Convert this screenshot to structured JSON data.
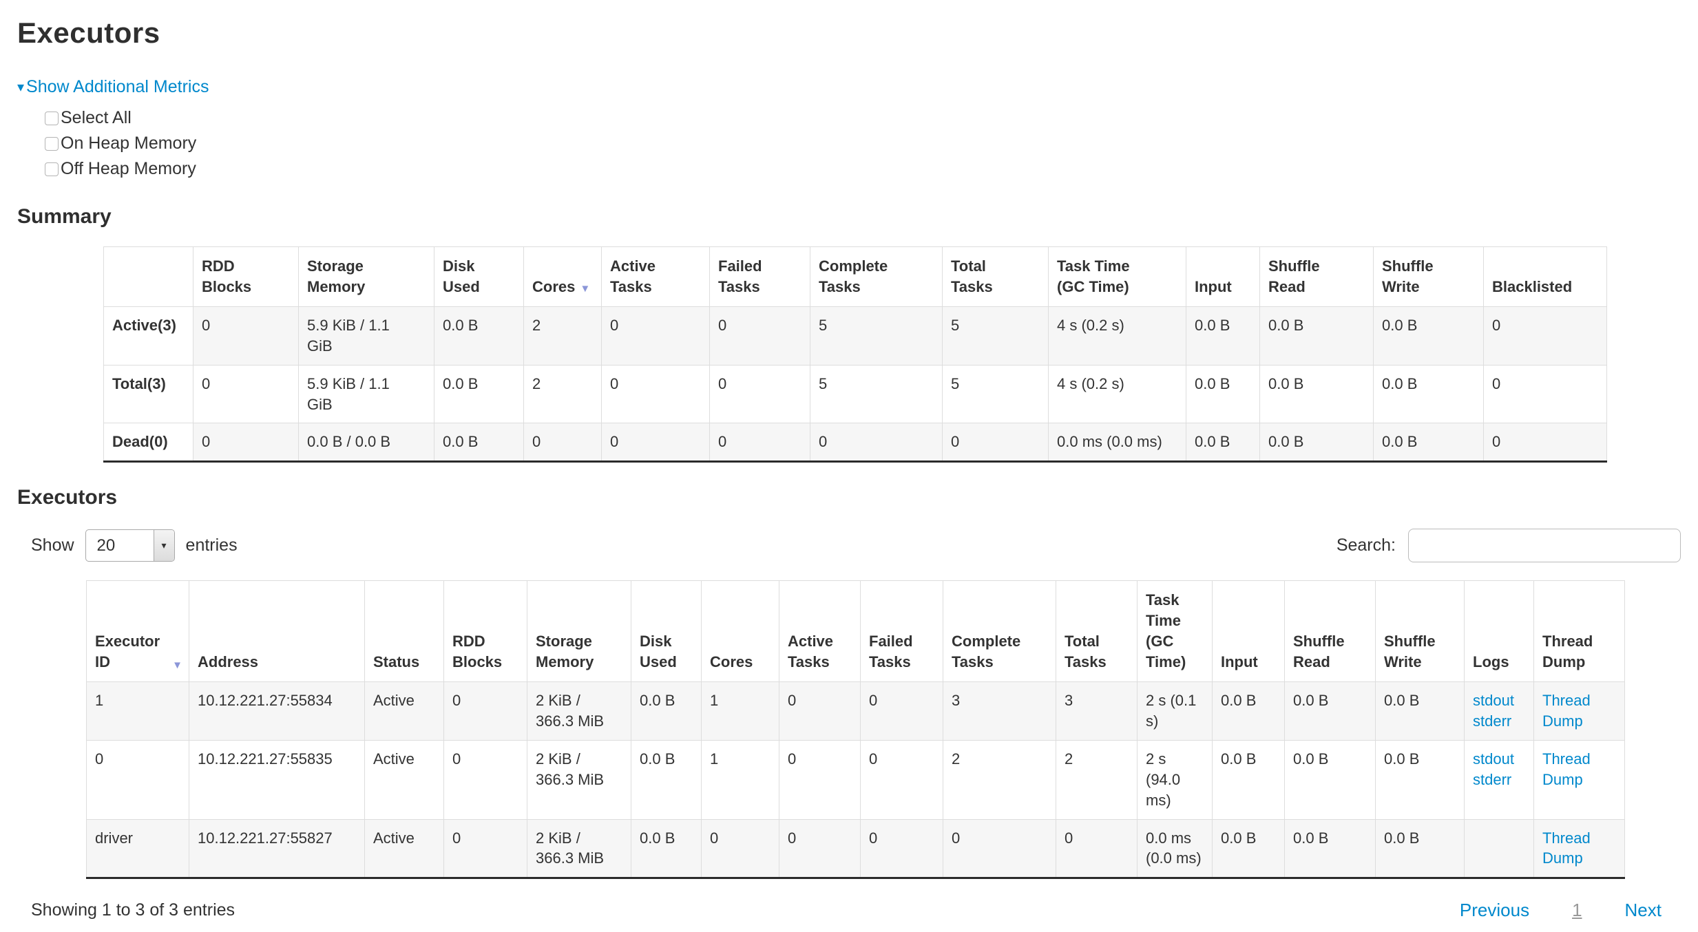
{
  "page": {
    "title": "Executors"
  },
  "icons": {
    "toggle_arrow": "▾",
    "sort_arrow": "▼",
    "select_arrow": "▾"
  },
  "colors": {
    "link": "#0088cc",
    "sort_arrow": "#8b96d8",
    "stripe": "#f6f6f6",
    "table_border": "#dddddd"
  },
  "metrics_toggle": {
    "label": "Show Additional Metrics",
    "checkboxes": [
      "Select All",
      "On Heap Memory",
      "Off Heap Memory"
    ]
  },
  "summary": {
    "heading": "Summary",
    "sorted_column": "Cores",
    "columns": [
      "",
      "RDD Blocks",
      "Storage Memory",
      "Disk Used",
      "Cores",
      "Active Tasks",
      "Failed Tasks",
      "Complete Tasks",
      "Total Tasks",
      "Task Time (GC Time)",
      "Input",
      "Shuffle Read",
      "Shuffle Write",
      "Blacklisted"
    ],
    "rows": [
      {
        "label": "Active(3)",
        "cells": [
          "0",
          "5.9 KiB / 1.1 GiB",
          "0.0 B",
          "2",
          "0",
          "0",
          "5",
          "5",
          "4 s (0.2 s)",
          "0.0 B",
          "0.0 B",
          "0.0 B",
          "0"
        ]
      },
      {
        "label": "Total(3)",
        "cells": [
          "0",
          "5.9 KiB / 1.1 GiB",
          "0.0 B",
          "2",
          "0",
          "0",
          "5",
          "5",
          "4 s (0.2 s)",
          "0.0 B",
          "0.0 B",
          "0.0 B",
          "0"
        ]
      },
      {
        "label": "Dead(0)",
        "cells": [
          "0",
          "0.0 B / 0.0 B",
          "0.0 B",
          "0",
          "0",
          "0",
          "0",
          "0",
          "0.0 ms (0.0 ms)",
          "0.0 B",
          "0.0 B",
          "0.0 B",
          "0"
        ]
      }
    ]
  },
  "executors": {
    "heading": "Executors",
    "length_menu": {
      "label_before": "Show",
      "selected": "20",
      "label_after": "entries"
    },
    "search": {
      "label": "Search:",
      "value": ""
    },
    "sorted_column": "Executor ID",
    "columns": [
      "Executor ID",
      "Address",
      "Status",
      "RDD Blocks",
      "Storage Memory",
      "Disk Used",
      "Cores",
      "Active Tasks",
      "Failed Tasks",
      "Complete Tasks",
      "Total Tasks",
      "Task Time (GC Time)",
      "Input",
      "Shuffle Read",
      "Shuffle Write",
      "Logs",
      "Thread Dump"
    ],
    "rows": [
      {
        "cells": [
          "1",
          "10.12.221.27:55834",
          "Active",
          "0",
          "2 KiB / 366.3 MiB",
          "0.0 B",
          "1",
          "0",
          "0",
          "3",
          "3",
          "2 s (0.1 s)",
          "0.0 B",
          "0.0 B",
          "0.0 B"
        ],
        "logs": [
          "stdout",
          "stderr"
        ],
        "thread_dump": "Thread Dump"
      },
      {
        "cells": [
          "0",
          "10.12.221.27:55835",
          "Active",
          "0",
          "2 KiB / 366.3 MiB",
          "0.0 B",
          "1",
          "0",
          "0",
          "2",
          "2",
          "2 s (94.0 ms)",
          "0.0 B",
          "0.0 B",
          "0.0 B"
        ],
        "logs": [
          "stdout",
          "stderr"
        ],
        "thread_dump": "Thread Dump"
      },
      {
        "cells": [
          "driver",
          "10.12.221.27:55827",
          "Active",
          "0",
          "2 KiB / 366.3 MiB",
          "0.0 B",
          "0",
          "0",
          "0",
          "0",
          "0",
          "0.0 ms (0.0 ms)",
          "0.0 B",
          "0.0 B",
          "0.0 B"
        ],
        "logs": [],
        "thread_dump": "Thread Dump"
      }
    ],
    "info": "Showing 1 to 3 of 3 entries",
    "pagination": {
      "previous": "Previous",
      "pages": [
        "1"
      ],
      "current": "1",
      "next": "Next"
    }
  }
}
